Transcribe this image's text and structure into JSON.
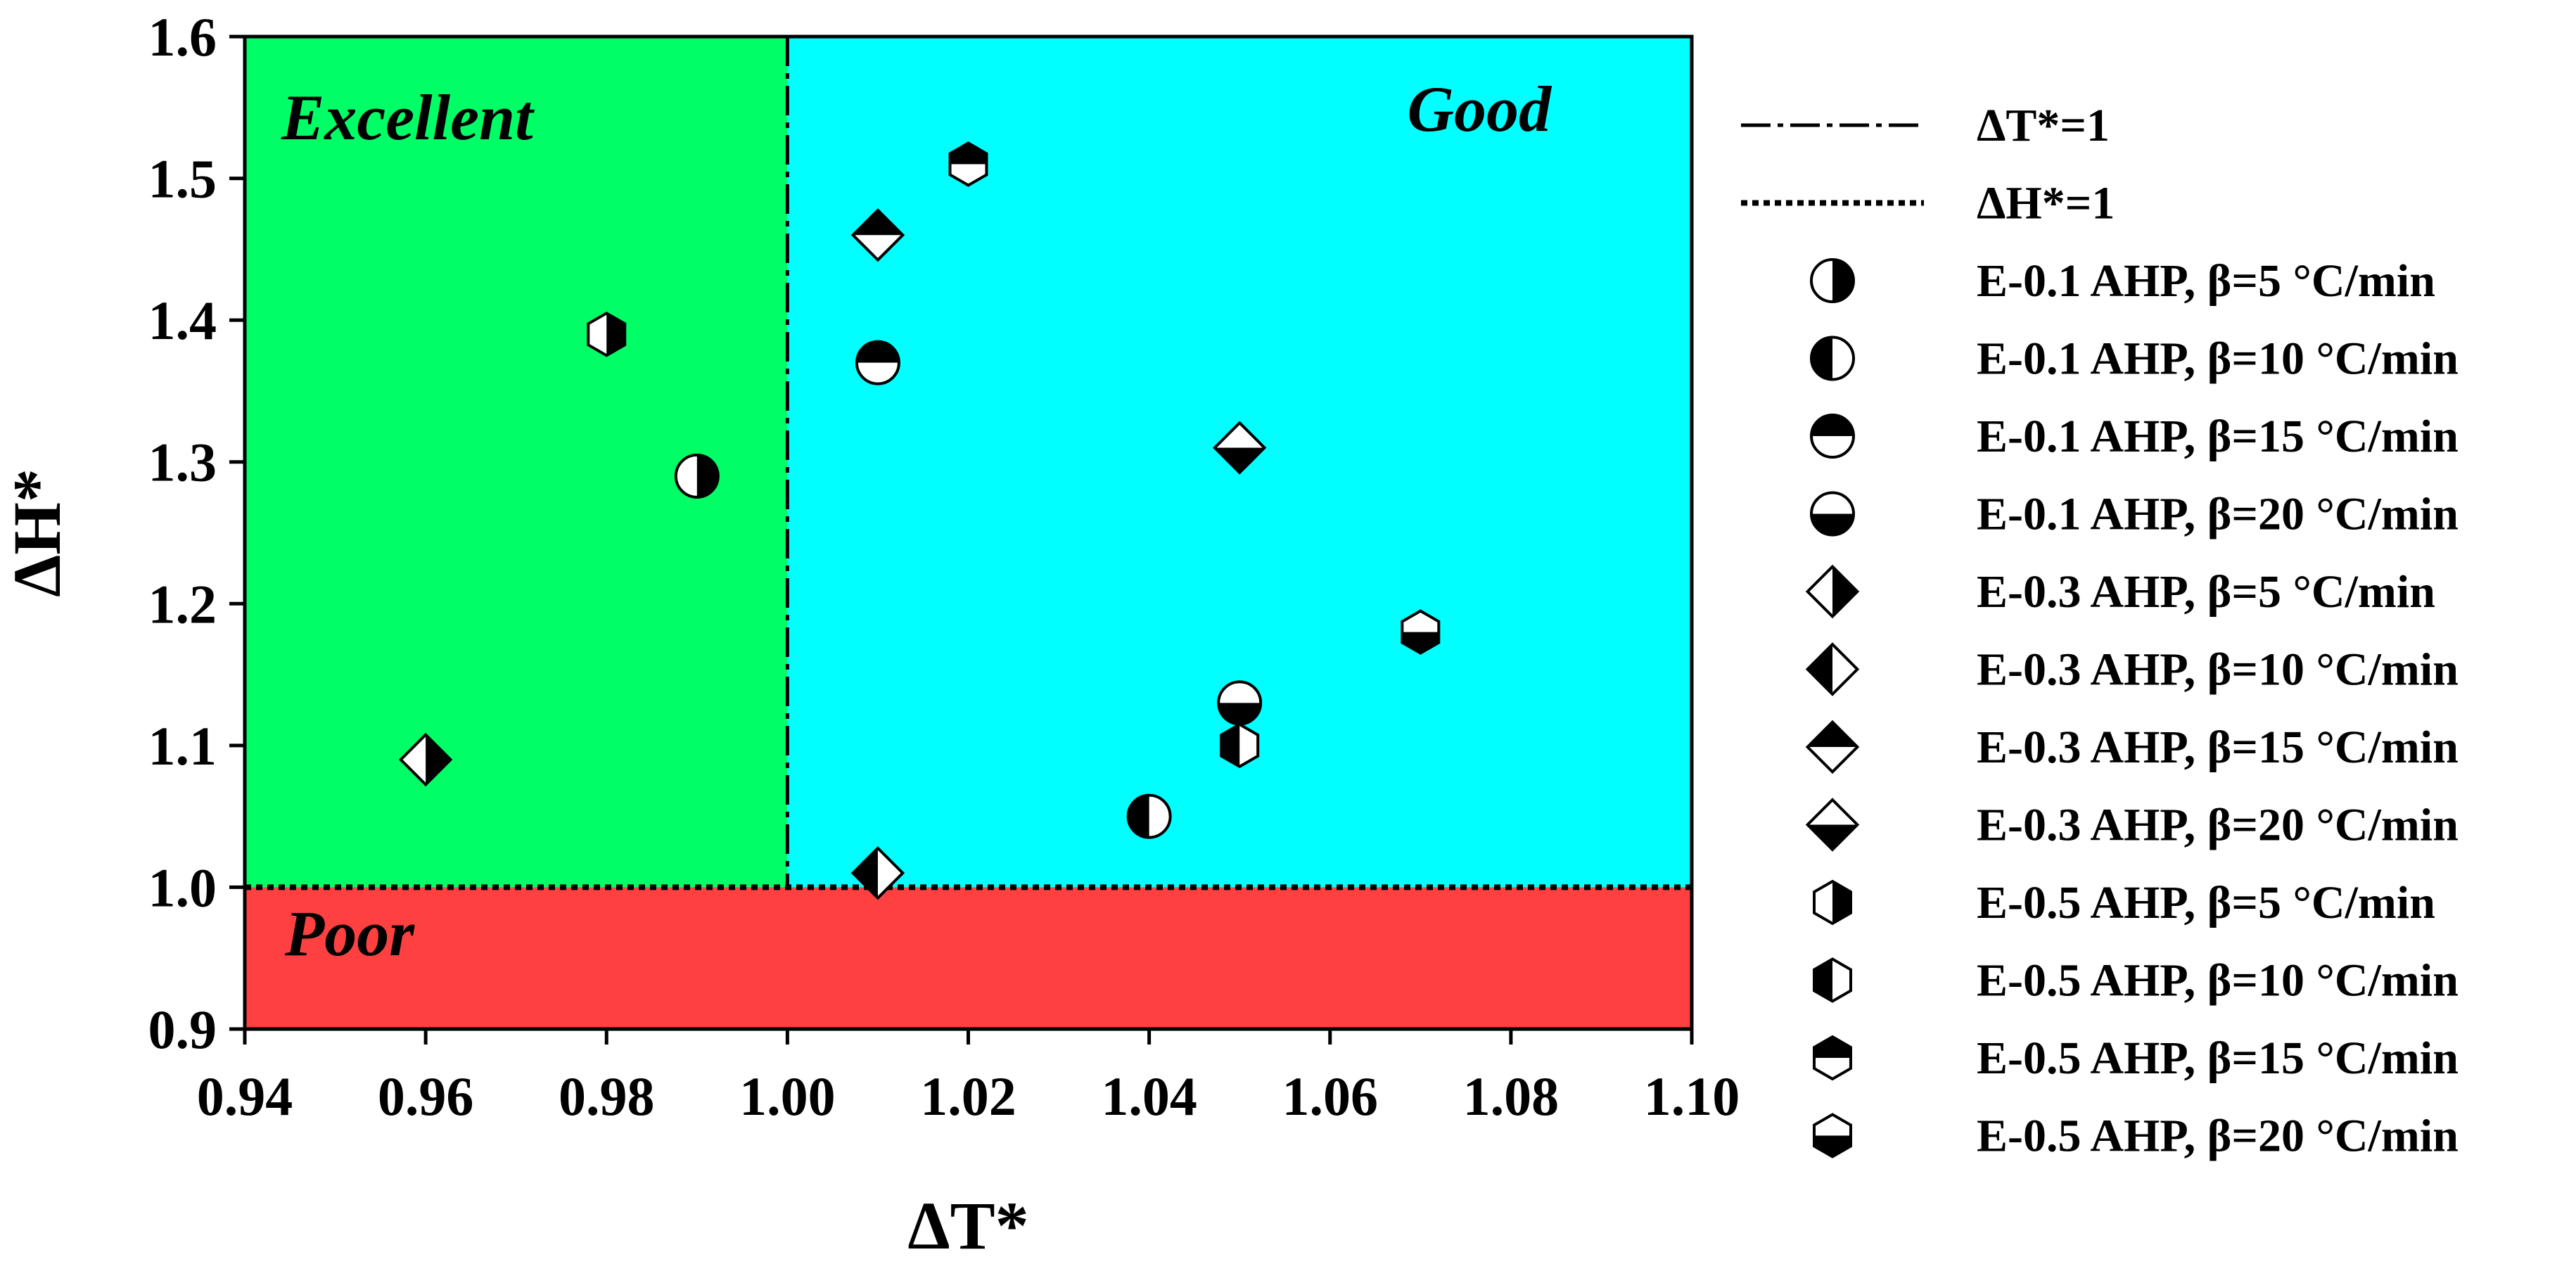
{
  "chart_data": {
    "type": "scatter",
    "xlabel": "ΔT*",
    "ylabel": "ΔH*",
    "xlim": [
      0.94,
      1.1
    ],
    "ylim": [
      0.9,
      1.6
    ],
    "x_ticks": [
      "0.94",
      "0.96",
      "0.98",
      "1.00",
      "1.02",
      "1.04",
      "1.06",
      "1.08",
      "1.10"
    ],
    "y_ticks": [
      "0.9",
      "1.0",
      "1.1",
      "1.2",
      "1.3",
      "1.4",
      "1.5",
      "1.6"
    ],
    "grid": false,
    "legend_position": "right, outside plot",
    "regions": [
      {
        "name": "Excellent",
        "x": [
          0.94,
          1.0
        ],
        "y": [
          1.0,
          1.6
        ],
        "color": "#00FF66"
      },
      {
        "name": "Good",
        "x": [
          1.0,
          1.1
        ],
        "y": [
          1.0,
          1.6
        ],
        "color": "#00FFFF"
      },
      {
        "name": "Poor",
        "x": [
          0.94,
          1.1
        ],
        "y": [
          0.9,
          1.0
        ],
        "color": "#FF4040"
      }
    ],
    "reference_lines": [
      {
        "name": "ΔT*=1",
        "orientation": "vertical",
        "value": 1.0,
        "style": "dash-dot"
      },
      {
        "name": "ΔH*=1",
        "orientation": "horizontal",
        "value": 1.0,
        "style": "dotted"
      }
    ],
    "series": [
      {
        "name": "E-0.1 AHP, β=5 °C/min",
        "marker": "circle",
        "fill": "right",
        "x": [
          0.99
        ],
        "y": [
          1.29
        ]
      },
      {
        "name": "E-0.1 AHP, β=10 °C/min",
        "marker": "circle",
        "fill": "left",
        "x": [
          1.04
        ],
        "y": [
          1.05
        ]
      },
      {
        "name": "E-0.1 AHP, β=15 °C/min",
        "marker": "circle",
        "fill": "top",
        "x": [
          1.01
        ],
        "y": [
          1.37
        ]
      },
      {
        "name": "E-0.1 AHP, β=20 °C/min",
        "marker": "circle",
        "fill": "bottom",
        "x": [
          1.05
        ],
        "y": [
          1.13
        ]
      },
      {
        "name": "E-0.3 AHP, β=5 °C/min",
        "marker": "diamond",
        "fill": "right",
        "x": [
          0.96
        ],
        "y": [
          1.09
        ]
      },
      {
        "name": "E-0.3 AHP, β=10 °C/min",
        "marker": "diamond",
        "fill": "left",
        "x": [
          1.01
        ],
        "y": [
          1.01
        ]
      },
      {
        "name": "E-0.3 AHP, β=15 °C/min",
        "marker": "diamond",
        "fill": "top",
        "x": [
          1.01
        ],
        "y": [
          1.46
        ]
      },
      {
        "name": "E-0.3 AHP, β=20 °C/min",
        "marker": "diamond",
        "fill": "bottom",
        "x": [
          1.05
        ],
        "y": [
          1.31
        ]
      },
      {
        "name": "E-0.5 AHP, β=5 °C/min",
        "marker": "hexagon",
        "fill": "right",
        "x": [
          0.98
        ],
        "y": [
          1.39
        ]
      },
      {
        "name": "E-0.5 AHP, β=10 °C/min",
        "marker": "hexagon",
        "fill": "left",
        "x": [
          1.05
        ],
        "y": [
          1.1
        ]
      },
      {
        "name": "E-0.5 AHP, β=15 °C/min",
        "marker": "hexagon",
        "fill": "top",
        "x": [
          1.02
        ],
        "y": [
          1.51
        ]
      },
      {
        "name": "E-0.5 AHP, β=20 °C/min",
        "marker": "hexagon",
        "fill": "bottom",
        "x": [
          1.07
        ],
        "y": [
          1.18
        ]
      }
    ]
  }
}
